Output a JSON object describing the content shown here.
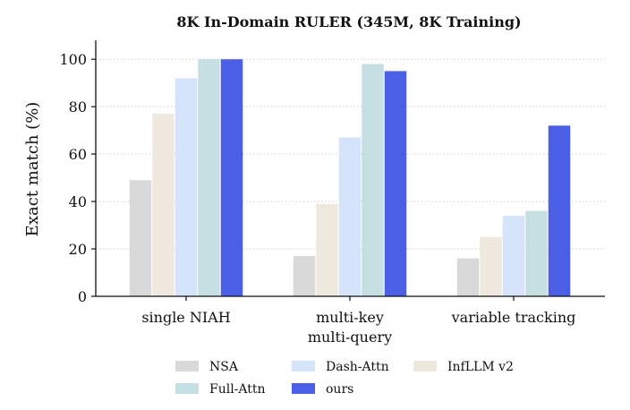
{
  "chart_data": {
    "type": "bar",
    "title": "8K In-Domain RULER (345M, 8K Training)",
    "xlabel": "",
    "ylabel": "Exact match (%)",
    "ylim": [
      0,
      108
    ],
    "yticks": [
      "0",
      "20",
      "40",
      "60",
      "80",
      "100"
    ],
    "grid": "horizontal dotted",
    "legend_position": "bottom",
    "categories": [
      [
        "single NIAH"
      ],
      [
        "multi-key",
        "multi-query"
      ],
      [
        "variable tracking"
      ]
    ],
    "series": [
      {
        "name": "NSA",
        "color": "#d9d9d9",
        "values": [
          49,
          17,
          16
        ]
      },
      {
        "name": "InfLLM v2",
        "color": "#efe8de",
        "values": [
          77,
          39,
          25
        ]
      },
      {
        "name": "Dash-Attn",
        "color": "#d6e4fb",
        "values": [
          92,
          67,
          34
        ]
      },
      {
        "name": "Full-Attn",
        "color": "#c6dfe2",
        "values": [
          100,
          98,
          36
        ]
      },
      {
        "name": "ours",
        "color": "#4a5fe6",
        "values": [
          100,
          95,
          72
        ]
      }
    ],
    "legend_order": [
      "NSA",
      "Dash-Attn",
      "InfLLM v2",
      "Full-Attn",
      "ours"
    ]
  }
}
